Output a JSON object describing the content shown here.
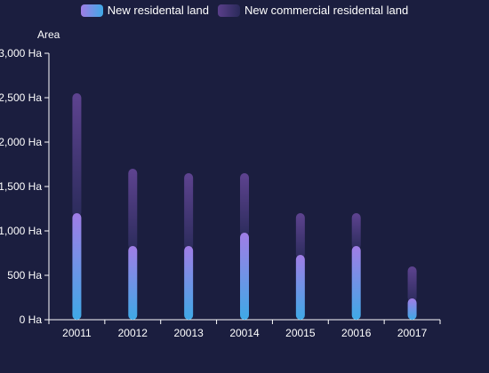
{
  "chart_data": {
    "type": "bar",
    "stacked": true,
    "categories": [
      "20011",
      "20012",
      "20013",
      "20014",
      "20015",
      "20016",
      "20017"
    ],
    "series": [
      {
        "name": "New residental land",
        "values": [
          1200,
          830,
          830,
          980,
          730,
          830,
          240
        ]
      },
      {
        "name": "New commercial residental land",
        "values": [
          1350,
          870,
          820,
          670,
          470,
          370,
          360
        ]
      }
    ],
    "ylabel": "Area",
    "unit": "Ha",
    "ylim": [
      0,
      3000
    ],
    "yticks": [
      0,
      500,
      1000,
      1500,
      2000,
      2500,
      3000
    ],
    "ytick_labels": [
      "0 Ha",
      "500 Ha",
      "1,000 Ha",
      "1,500 Ha",
      "2,000 Ha",
      "2,500 Ha",
      "3,000 Ha"
    ],
    "grid": false,
    "legend_position": "top-center",
    "colors": {
      "background": "#1b1e3f",
      "residential_top": "#a07de6",
      "residential_bottom": "#3fa9e6",
      "commercial_top": "#5a3f8a",
      "commercial_bottom": "#2a2a5a",
      "axis": "#ffffff",
      "text": "#ffffff"
    }
  }
}
